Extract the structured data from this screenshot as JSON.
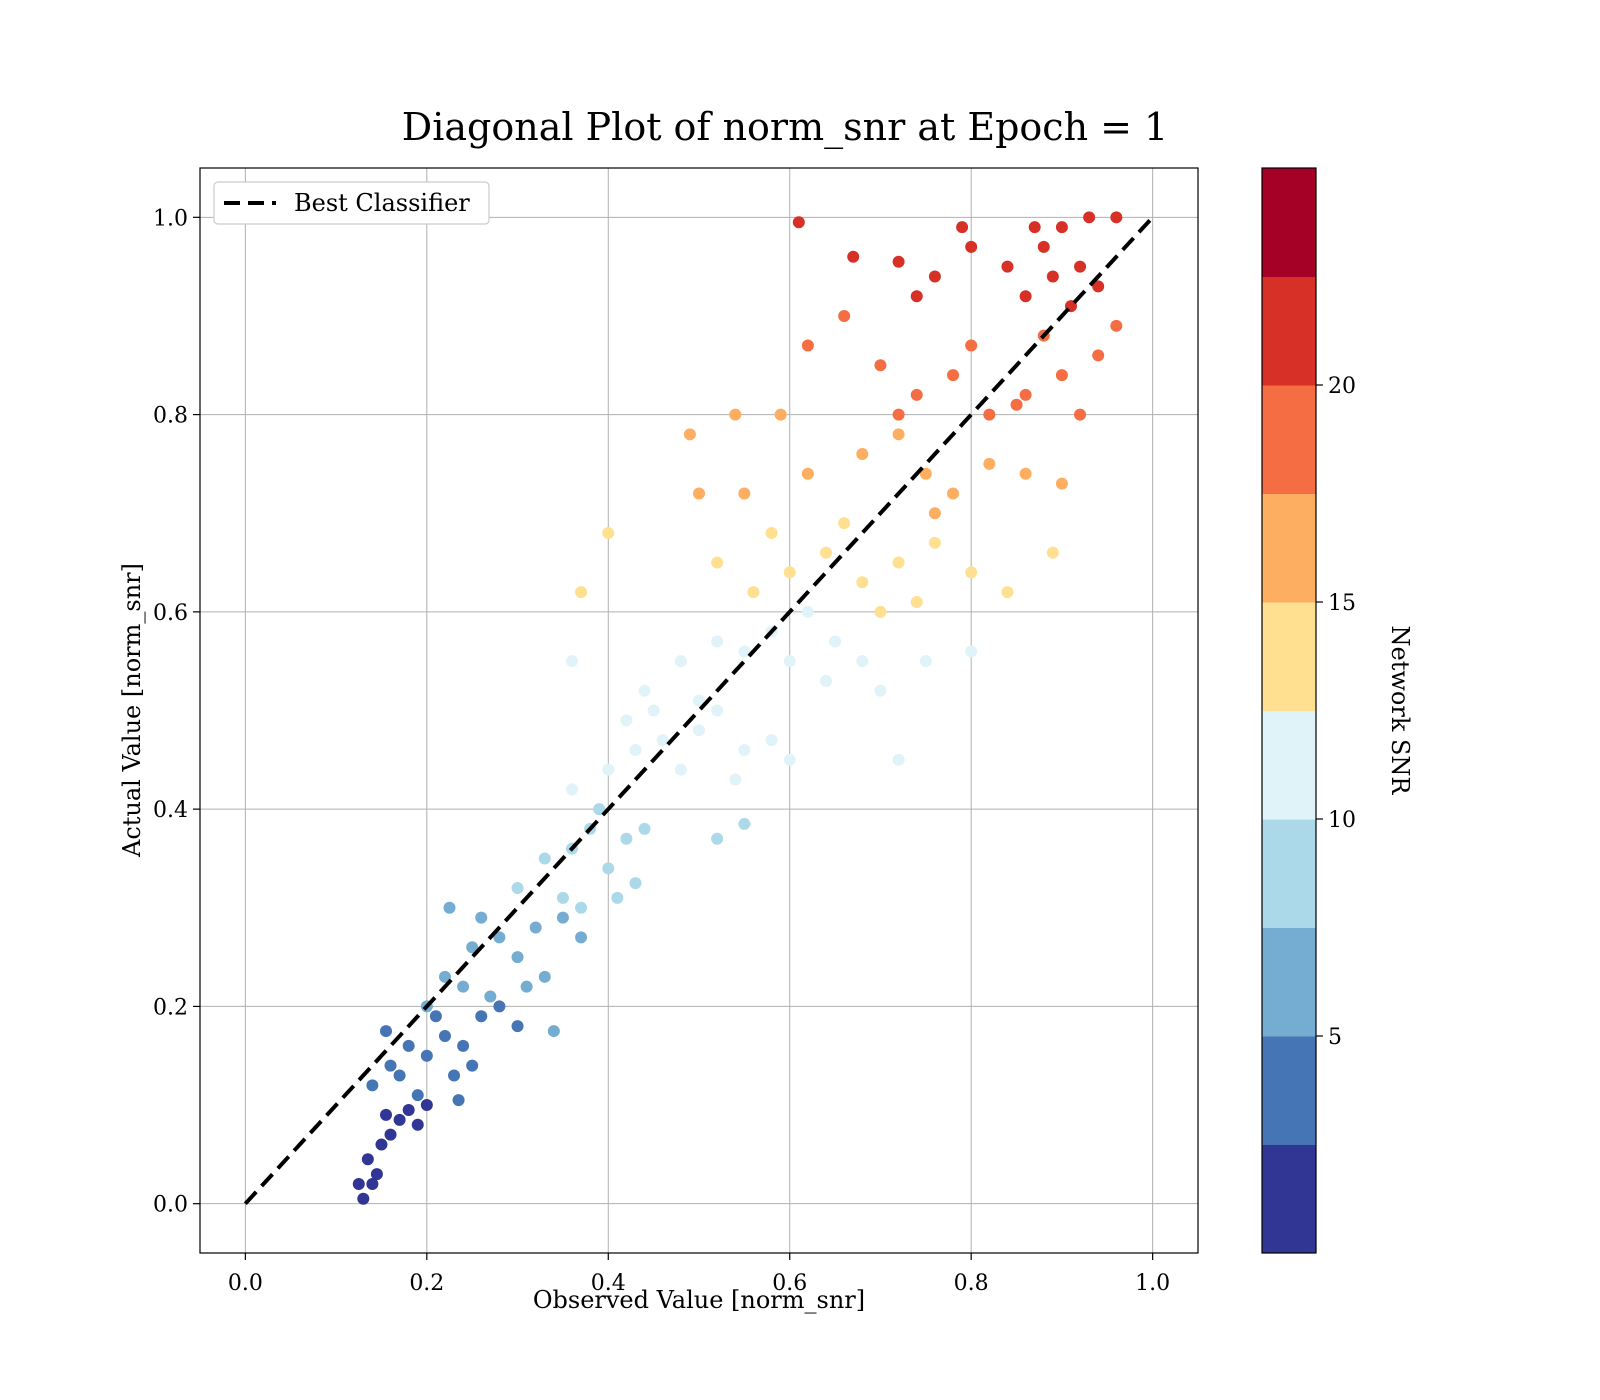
{
  "chart_data": {
    "type": "scatter",
    "title": "Diagonal Plot of norm_snr at Epoch = 1",
    "xlabel": "Observed Value [norm_snr]",
    "ylabel": "Actual Value [norm_snr]",
    "xlim": [
      -0.05,
      1.05
    ],
    "ylim": [
      -0.05,
      1.05
    ],
    "xticks": [
      "0.0",
      "0.2",
      "0.4",
      "0.6",
      "0.8",
      "1.0"
    ],
    "yticks": [
      "0.0",
      "0.2",
      "0.4",
      "0.6",
      "0.8",
      "1.0"
    ],
    "grid": true,
    "legend_position": "top-left",
    "reference_line": {
      "name": "Best Classifier",
      "x": [
        0.0,
        1.0
      ],
      "y": [
        0.0,
        1.0
      ],
      "style": "dashed",
      "color": "#000000"
    },
    "colorbar": {
      "label": "Network SNR",
      "range": [
        0,
        25
      ],
      "ticks": [
        "5",
        "10",
        "15",
        "20"
      ],
      "colormap": "RdYlBu_r (10 discrete levels)",
      "colors": [
        "#313695",
        "#4575b4",
        "#74add1",
        "#abd9e9",
        "#e0f3f8",
        "#fee090",
        "#fdae61",
        "#f46d43",
        "#d73027",
        "#a50026"
      ]
    },
    "points": [
      [
        0.13,
        0.005,
        1
      ],
      [
        0.14,
        0.02,
        1
      ],
      [
        0.135,
        0.045,
        1
      ],
      [
        0.15,
        0.06,
        1
      ],
      [
        0.16,
        0.07,
        1
      ],
      [
        0.155,
        0.09,
        1
      ],
      [
        0.17,
        0.085,
        1
      ],
      [
        0.18,
        0.095,
        1
      ],
      [
        0.19,
        0.08,
        1
      ],
      [
        0.2,
        0.1,
        1
      ],
      [
        0.145,
        0.03,
        1
      ],
      [
        0.125,
        0.02,
        1
      ],
      [
        0.14,
        0.12,
        4
      ],
      [
        0.16,
        0.14,
        4
      ],
      [
        0.18,
        0.16,
        4
      ],
      [
        0.2,
        0.15,
        4
      ],
      [
        0.22,
        0.17,
        4
      ],
      [
        0.24,
        0.16,
        4
      ],
      [
        0.26,
        0.19,
        4
      ],
      [
        0.28,
        0.2,
        4
      ],
      [
        0.3,
        0.18,
        4
      ],
      [
        0.17,
        0.13,
        4
      ],
      [
        0.19,
        0.11,
        4
      ],
      [
        0.23,
        0.13,
        4
      ],
      [
        0.25,
        0.14,
        4
      ],
      [
        0.21,
        0.19,
        4
      ],
      [
        0.235,
        0.105,
        4
      ],
      [
        0.155,
        0.175,
        4
      ],
      [
        0.2,
        0.2,
        6
      ],
      [
        0.22,
        0.23,
        6
      ],
      [
        0.25,
        0.26,
        6
      ],
      [
        0.28,
        0.27,
        6
      ],
      [
        0.3,
        0.25,
        6
      ],
      [
        0.32,
        0.28,
        6
      ],
      [
        0.35,
        0.29,
        6
      ],
      [
        0.24,
        0.22,
        6
      ],
      [
        0.27,
        0.21,
        6
      ],
      [
        0.26,
        0.29,
        6
      ],
      [
        0.37,
        0.27,
        6
      ],
      [
        0.31,
        0.22,
        6
      ],
      [
        0.33,
        0.23,
        6
      ],
      [
        0.225,
        0.3,
        6
      ],
      [
        0.34,
        0.175,
        6
      ],
      [
        0.3,
        0.32,
        8
      ],
      [
        0.33,
        0.35,
        8
      ],
      [
        0.36,
        0.36,
        8
      ],
      [
        0.38,
        0.38,
        8
      ],
      [
        0.4,
        0.34,
        8
      ],
      [
        0.42,
        0.37,
        8
      ],
      [
        0.35,
        0.31,
        8
      ],
      [
        0.39,
        0.4,
        8
      ],
      [
        0.44,
        0.38,
        8
      ],
      [
        0.37,
        0.3,
        8
      ],
      [
        0.41,
        0.31,
        8
      ],
      [
        0.52,
        0.37,
        8
      ],
      [
        0.55,
        0.385,
        8
      ],
      [
        0.43,
        0.325,
        8
      ],
      [
        0.36,
        0.42,
        10
      ],
      [
        0.4,
        0.44,
        10
      ],
      [
        0.43,
        0.46,
        10
      ],
      [
        0.46,
        0.47,
        10
      ],
      [
        0.5,
        0.48,
        10
      ],
      [
        0.52,
        0.5,
        10
      ],
      [
        0.55,
        0.46,
        10
      ],
      [
        0.48,
        0.44,
        10
      ],
      [
        0.45,
        0.5,
        10
      ],
      [
        0.42,
        0.49,
        10
      ],
      [
        0.58,
        0.47,
        10
      ],
      [
        0.54,
        0.43,
        10
      ],
      [
        0.6,
        0.45,
        10
      ],
      [
        0.72,
        0.45,
        10
      ],
      [
        0.44,
        0.52,
        12
      ],
      [
        0.48,
        0.55,
        12
      ],
      [
        0.52,
        0.57,
        12
      ],
      [
        0.55,
        0.56,
        12
      ],
      [
        0.58,
        0.58,
        12
      ],
      [
        0.6,
        0.55,
        12
      ],
      [
        0.62,
        0.6,
        12
      ],
      [
        0.65,
        0.57,
        12
      ],
      [
        0.68,
        0.55,
        12
      ],
      [
        0.7,
        0.52,
        12
      ],
      [
        0.75,
        0.55,
        12
      ],
      [
        0.8,
        0.56,
        12
      ],
      [
        0.5,
        0.51,
        12
      ],
      [
        0.64,
        0.53,
        12
      ],
      [
        0.36,
        0.55,
        12
      ],
      [
        0.52,
        0.65,
        14
      ],
      [
        0.56,
        0.62,
        14
      ],
      [
        0.6,
        0.64,
        14
      ],
      [
        0.64,
        0.66,
        14
      ],
      [
        0.68,
        0.63,
        14
      ],
      [
        0.72,
        0.65,
        14
      ],
      [
        0.76,
        0.67,
        14
      ],
      [
        0.8,
        0.64,
        14
      ],
      [
        0.84,
        0.62,
        14
      ],
      [
        0.66,
        0.69,
        14
      ],
      [
        0.7,
        0.6,
        14
      ],
      [
        0.58,
        0.68,
        14
      ],
      [
        0.4,
        0.68,
        14
      ],
      [
        0.37,
        0.62,
        14
      ],
      [
        0.89,
        0.66,
        14
      ],
      [
        0.74,
        0.61,
        14
      ],
      [
        0.5,
        0.72,
        17
      ],
      [
        0.55,
        0.72,
        17
      ],
      [
        0.62,
        0.74,
        17
      ],
      [
        0.68,
        0.76,
        17
      ],
      [
        0.72,
        0.78,
        17
      ],
      [
        0.75,
        0.74,
        17
      ],
      [
        0.78,
        0.72,
        17
      ],
      [
        0.82,
        0.75,
        17
      ],
      [
        0.86,
        0.74,
        17
      ],
      [
        0.9,
        0.73,
        17
      ],
      [
        0.49,
        0.78,
        17
      ],
      [
        0.54,
        0.8,
        17
      ],
      [
        0.59,
        0.8,
        17
      ],
      [
        0.76,
        0.7,
        17
      ],
      [
        0.62,
        0.87,
        19
      ],
      [
        0.66,
        0.9,
        19
      ],
      [
        0.7,
        0.85,
        19
      ],
      [
        0.74,
        0.82,
        19
      ],
      [
        0.78,
        0.84,
        19
      ],
      [
        0.82,
        0.8,
        19
      ],
      [
        0.86,
        0.82,
        19
      ],
      [
        0.9,
        0.84,
        19
      ],
      [
        0.94,
        0.86,
        19
      ],
      [
        0.96,
        0.89,
        19
      ],
      [
        0.88,
        0.88,
        19
      ],
      [
        0.8,
        0.87,
        19
      ],
      [
        0.85,
        0.81,
        19
      ],
      [
        0.92,
        0.8,
        19
      ],
      [
        0.72,
        0.8,
        19
      ],
      [
        0.61,
        0.995,
        22
      ],
      [
        0.67,
        0.96,
        22
      ],
      [
        0.72,
        0.955,
        22
      ],
      [
        0.76,
        0.94,
        22
      ],
      [
        0.8,
        0.97,
        22
      ],
      [
        0.84,
        0.95,
        22
      ],
      [
        0.86,
        0.92,
        22
      ],
      [
        0.88,
        0.97,
        22
      ],
      [
        0.9,
        0.99,
        22
      ],
      [
        0.92,
        0.95,
        22
      ],
      [
        0.94,
        0.93,
        22
      ],
      [
        0.89,
        0.94,
        22
      ],
      [
        0.91,
        0.91,
        22
      ],
      [
        0.87,
        0.99,
        22
      ],
      [
        0.93,
        1.0,
        22
      ],
      [
        0.96,
        1.0,
        22
      ],
      [
        0.79,
        0.99,
        22
      ],
      [
        0.74,
        0.92,
        22
      ]
    ]
  }
}
